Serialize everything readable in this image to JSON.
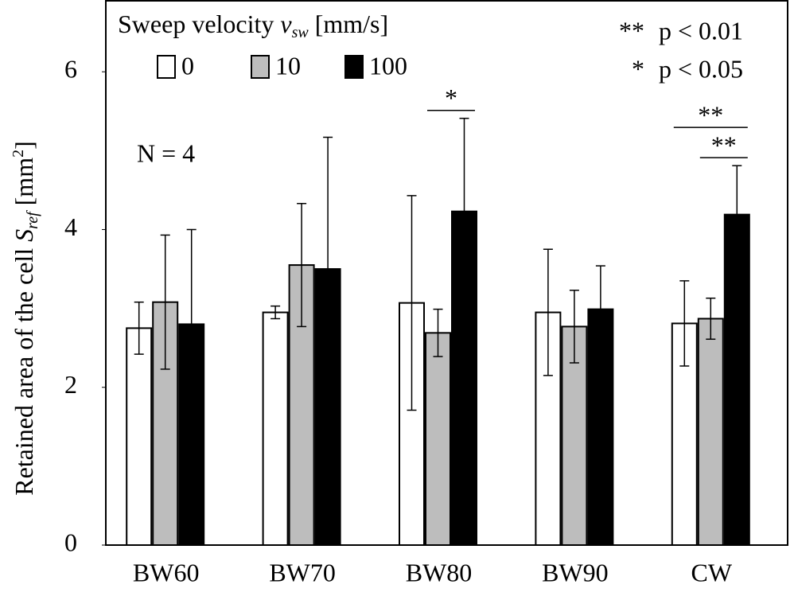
{
  "chart_data": {
    "type": "bar",
    "y_label": {
      "text": "Retained area of the cell",
      "symbol": "S",
      "subscript": "ref",
      "unit": "[mm",
      "superscript": "2",
      "unit_end": "]"
    },
    "legend_title": {
      "text": "Sweep velocity",
      "symbol": "v",
      "subscript": "sw",
      "unit": "[mm/s]"
    },
    "categories": [
      "BW60",
      "BW70",
      "BW80",
      "BW90",
      "CW"
    ],
    "series": [
      {
        "name": "0",
        "color": "#ffffff",
        "values": [
          2.75,
          2.95,
          3.07,
          2.95,
          2.81
        ],
        "errors": [
          0.33,
          0.08,
          1.36,
          0.8,
          0.54
        ]
      },
      {
        "name": "10",
        "color": "#bdbdbd",
        "values": [
          3.08,
          3.55,
          2.69,
          2.77,
          2.87
        ],
        "errors": [
          0.85,
          0.78,
          0.3,
          0.46,
          0.26
        ]
      },
      {
        "name": "100",
        "color": "#000000",
        "values": [
          2.8,
          3.5,
          4.23,
          2.99,
          4.19
        ],
        "errors": [
          1.2,
          1.67,
          1.18,
          0.55,
          0.62
        ]
      }
    ],
    "ylim": [
      0,
      6.9
    ],
    "yticks": [
      0,
      2,
      4,
      6
    ],
    "sample_note": "N = 4",
    "significance_legend": [
      {
        "stars": "**",
        "text": "p < 0.01"
      },
      {
        "stars": "*",
        "text": "p < 0.05"
      }
    ],
    "significance": [
      {
        "category": 2,
        "from": 1,
        "to": 2,
        "label": "*"
      },
      {
        "category": 4,
        "from": 1,
        "to": 2,
        "label": "**"
      },
      {
        "category": 4,
        "from": 0,
        "to": 2,
        "label": "**"
      }
    ]
  }
}
